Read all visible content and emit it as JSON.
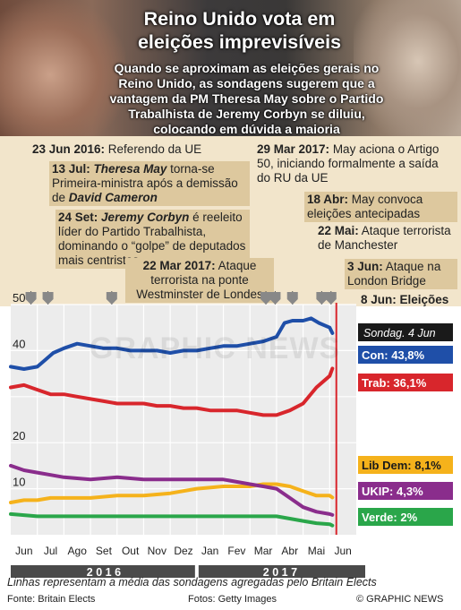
{
  "header": {
    "title": "Reino Unido vota em eleições imprevisíveis",
    "subtitle": "Quando se aproximam as eleições gerais no Reino Unido, as sondagens sugerem que a vantagem da PM Theresa May sobre o Partido Trabalhista de Jeremy Corbyn se diluiu, colocando em dúvida a maioria"
  },
  "events": [
    {
      "date": "23 Jun 2016:",
      "text": " Referendo da UE"
    },
    {
      "date": "13 Jul:",
      "name": "Theresa May",
      "text": " torna-se Primeira-ministra após a demissão de ",
      "name2": "David Cameron"
    },
    {
      "date": "24 Set:",
      "name": "Jeremy Corbyn",
      "text": " é reeleito líder do Partido Trabalhista, dominando o “golpe” de deputados mais centristas"
    },
    {
      "date": "22 Mar 2017:",
      "text": " Ataque terrorista na ponte Westminster de Londes"
    },
    {
      "date": "29 Mar 2017:",
      "text": " May aciona o Artigo 50, iniciando formalmente a saída do RU da UE"
    },
    {
      "date": "18 Abr:",
      "text": " May convoca eleições antecipadas"
    },
    {
      "date": "22 Mai:",
      "text": " Ataque terrorista de Manchester"
    },
    {
      "date": "3 Jun:",
      "text": " Ataque na London Bridge"
    },
    {
      "date": "8 Jun:",
      "text": " Eleições"
    }
  ],
  "footer": {
    "note": "Linhas representam a média das sondagens agregadas pelo Britain Elects",
    "source": "Fonte: Britain Elects",
    "photos": "Fotos: Getty Images",
    "credit": "© GRAPHIC NEWS",
    "watermark": "GRAPHIC NEWS"
  },
  "colors": {
    "con": "#1f4fa8",
    "trab": "#d8262c",
    "libdem": "#f5b21b",
    "ukip": "#8a2d8c",
    "verde": "#2aa64a"
  },
  "chart_data": {
    "type": "line",
    "ylim": [
      0,
      50
    ],
    "yticks": [
      10,
      20,
      40,
      50
    ],
    "months": [
      "Jun",
      "Jul",
      "Ago",
      "Set",
      "Out",
      "Nov",
      "Dez",
      "Jan",
      "Fev",
      "Mar",
      "Abr",
      "Mai",
      "Jun"
    ],
    "years": [
      "2 0 1 6",
      "2 0 1 7"
    ],
    "legend_header": "Sondag. 4 Jun",
    "series": [
      {
        "name": "Con",
        "label": "Con: 43,8%",
        "key": "con",
        "values": [
          [
            0,
            36.5
          ],
          [
            0.5,
            36
          ],
          [
            1,
            36.5
          ],
          [
            1.3,
            38
          ],
          [
            1.6,
            39.5
          ],
          [
            2,
            40.5
          ],
          [
            2.5,
            41.5
          ],
          [
            3,
            41
          ],
          [
            3.5,
            40.5
          ],
          [
            4,
            40.5
          ],
          [
            4.5,
            40
          ],
          [
            5,
            40
          ],
          [
            5.5,
            40
          ],
          [
            6,
            39.5
          ],
          [
            6.5,
            40
          ],
          [
            7,
            40
          ],
          [
            7.5,
            40.5
          ],
          [
            8,
            41
          ],
          [
            8.5,
            41
          ],
          [
            9,
            41.5
          ],
          [
            9.5,
            42
          ],
          [
            10,
            43
          ],
          [
            10.3,
            46
          ],
          [
            10.6,
            46.5
          ],
          [
            11,
            46.5
          ],
          [
            11.3,
            47
          ],
          [
            11.6,
            46
          ],
          [
            12,
            45
          ],
          [
            12.1,
            43.8
          ]
        ]
      },
      {
        "name": "Trab",
        "label": "Trab: 36,1%",
        "key": "trab",
        "values": [
          [
            0,
            32
          ],
          [
            0.5,
            32.5
          ],
          [
            1,
            31.5
          ],
          [
            1.5,
            30.5
          ],
          [
            2,
            30.5
          ],
          [
            2.5,
            30
          ],
          [
            3,
            29.5
          ],
          [
            3.5,
            29
          ],
          [
            4,
            28.5
          ],
          [
            4.5,
            28.5
          ],
          [
            5,
            28.5
          ],
          [
            5.5,
            28
          ],
          [
            6,
            28
          ],
          [
            6.5,
            27.5
          ],
          [
            7,
            27.5
          ],
          [
            7.5,
            27
          ],
          [
            8,
            27
          ],
          [
            8.5,
            27
          ],
          [
            9,
            26.5
          ],
          [
            9.5,
            26
          ],
          [
            10,
            26
          ],
          [
            10.5,
            27
          ],
          [
            11,
            28.5
          ],
          [
            11.5,
            32
          ],
          [
            12,
            34.5
          ],
          [
            12.1,
            36.1
          ]
        ]
      },
      {
        "name": "Lib Dem",
        "label": "Lib Dem: 8,1%",
        "key": "libdem",
        "values": [
          [
            0,
            7
          ],
          [
            0.5,
            7.5
          ],
          [
            1,
            7.5
          ],
          [
            1.5,
            8
          ],
          [
            2,
            8
          ],
          [
            3,
            8
          ],
          [
            4,
            8.5
          ],
          [
            5,
            8.5
          ],
          [
            6,
            9
          ],
          [
            7,
            10
          ],
          [
            8,
            10.5
          ],
          [
            9,
            10.5
          ],
          [
            9.5,
            11
          ],
          [
            10,
            11
          ],
          [
            10.5,
            10.5
          ],
          [
            11,
            9.5
          ],
          [
            11.5,
            8.5
          ],
          [
            12,
            8.5
          ],
          [
            12.1,
            8.1
          ]
        ]
      },
      {
        "name": "UKIP",
        "label": "UKIP: 4,3%",
        "key": "ukip",
        "values": [
          [
            0,
            15
          ],
          [
            0.5,
            14
          ],
          [
            1,
            13.5
          ],
          [
            1.5,
            13
          ],
          [
            2,
            12.5
          ],
          [
            3,
            12
          ],
          [
            4,
            12.5
          ],
          [
            5,
            12
          ],
          [
            6,
            12
          ],
          [
            7,
            12
          ],
          [
            8,
            12
          ],
          [
            9,
            11
          ],
          [
            9.5,
            10.5
          ],
          [
            10,
            10
          ],
          [
            10.5,
            8
          ],
          [
            11,
            6
          ],
          [
            11.5,
            5
          ],
          [
            12,
            4.5
          ],
          [
            12.1,
            4.3
          ]
        ]
      },
      {
        "name": "Verde",
        "label": "Verde: 2%",
        "key": "verde",
        "values": [
          [
            0,
            4.5
          ],
          [
            1,
            4
          ],
          [
            2,
            4
          ],
          [
            3,
            4
          ],
          [
            4,
            4
          ],
          [
            5,
            4
          ],
          [
            6,
            4
          ],
          [
            7,
            4
          ],
          [
            8,
            4
          ],
          [
            9,
            4
          ],
          [
            10,
            4
          ],
          [
            10.5,
            3.5
          ],
          [
            11,
            3
          ],
          [
            11.5,
            2.5
          ],
          [
            12,
            2.3
          ],
          [
            12.1,
            2
          ]
        ]
      }
    ]
  }
}
